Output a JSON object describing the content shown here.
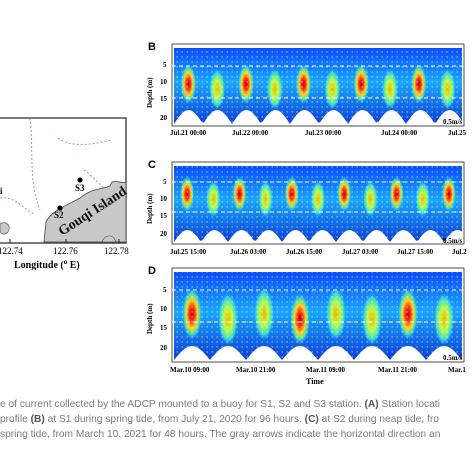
{
  "map": {
    "x_ticks": [
      "122.74",
      "122.76",
      "122.78"
    ],
    "x_axis_label": "Longitude (",
    "x_axis_unit_sup": "o",
    "x_axis_unit_rest": " E)",
    "island_label": "Gouqi Island",
    "stations": [
      {
        "name": "S3"
      },
      {
        "name": "S2"
      }
    ],
    "edge_fragment": "i"
  },
  "panels": [
    {
      "letter": "B",
      "y_label": "Depth (m)",
      "y_ticks": [
        "5",
        "10",
        "15",
        "20"
      ],
      "x_ticks": [
        "Jul.21 00:00",
        "Jul.22 00:00",
        "Jul.23 00:00",
        "Jul.24 00:00",
        "Jul.25"
      ],
      "scale": "0.5m/s"
    },
    {
      "letter": "C",
      "y_label": "Depth (m)",
      "y_ticks": [
        "5",
        "10",
        "15",
        "20"
      ],
      "x_ticks": [
        "Jul.25 15:00",
        "Jul.26 03:00",
        "Jul.26 15:00",
        "Jul.27 03:00",
        "Jul.27 15:00",
        "Jul.2"
      ],
      "scale": "0.5m/s"
    },
    {
      "letter": "D",
      "y_label": "Depth (m)",
      "y_ticks": [
        "5",
        "10",
        "15",
        "20"
      ],
      "x_ticks": [
        "Mar.10 09:00",
        "Mar.10 21:00",
        "Mar.11 09:00",
        "Mar.11 21:00",
        "Mar.1"
      ],
      "x_axis_title": "Time",
      "scale": "0.5m/s"
    }
  ],
  "caption": {
    "line1_a": "e of current collected by the ADCP mounted to a buoy for S1, S2 and S3 station. ",
    "line1_b": "(A)",
    "line1_c": " Station locati",
    "line2_a": " profile ",
    "line2_b": "(B)",
    "line2_c": " at S1 during spring tide, from July 21, 2020 for 96 hours. ",
    "line2_d": "(C)",
    "line2_e": " at S2 during neap tide, fro",
    "line3": "spring tide, from March 10, 2021 for 48 hours. The gray arrows indicate the horizontal direction an"
  },
  "colors": {
    "jet_low": "#1e3cff",
    "jet_high": "#d6001c",
    "land": "#c8c8c8",
    "dotted_boundary": "#d070d0"
  }
}
